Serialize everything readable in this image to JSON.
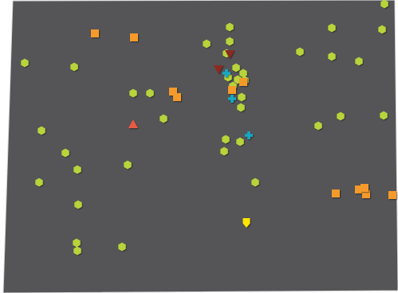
{
  "map": {
    "region_fill": "#555557",
    "region_border": "#d8d8d8",
    "page_background": "#ffffff",
    "layers": {
      "hexagon": {
        "icon": "hexagon-marker-icon",
        "color": "#b7d43a"
      },
      "square": {
        "icon": "square-marker-icon",
        "color": "#f59a2c"
      },
      "triangle-up": {
        "icon": "triangle-up-marker-icon",
        "color": "#ea5a43"
      },
      "triangle-down": {
        "icon": "triangle-down-marker-icon",
        "color": "#8c2b23"
      },
      "cross": {
        "icon": "cross-marker-icon",
        "color": "#17a9c4"
      },
      "shield": {
        "icon": "shield-marker-icon",
        "color": "#ffe600"
      }
    }
  }
}
